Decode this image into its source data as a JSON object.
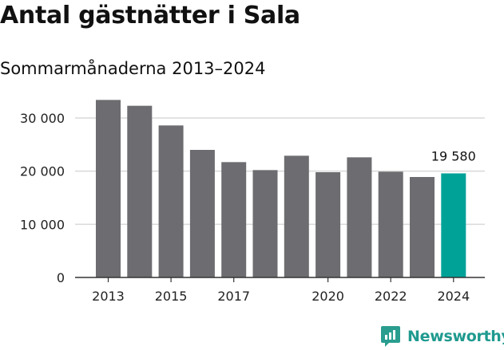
{
  "header": {
    "title": "Antal gästnätter i Sala",
    "subtitle": "Sommarmånaderna 2013–2024"
  },
  "brand": {
    "name": "Newsworthy",
    "color": "#2a9d8f"
  },
  "chart_data": {
    "type": "bar",
    "title": "Antal gästnätter i Sala",
    "subtitle": "Sommarmånaderna 2013–2024",
    "categories": [
      "2013",
      "2014",
      "2015",
      "2016",
      "2017",
      "2018",
      "2019",
      "2020",
      "2021",
      "2022",
      "2023",
      "2024"
    ],
    "values": [
      33400,
      32300,
      28600,
      24000,
      21700,
      20200,
      22900,
      19800,
      22600,
      19900,
      18900,
      19580
    ],
    "x_tick_labels": [
      "2013",
      "2015",
      "2017",
      "2020",
      "2022",
      "2024"
    ],
    "y_ticks": [
      0,
      10000,
      20000,
      30000
    ],
    "y_tick_labels": [
      "0",
      "10 000",
      "20 000",
      "30 000"
    ],
    "ylim": [
      0,
      36000
    ],
    "annotations": [
      {
        "category": "2024",
        "text": "19 580"
      }
    ],
    "grid": true,
    "colors": {
      "bar": "#6d6c70",
      "highlight": "#00a298",
      "grid": "#d9d9d9"
    },
    "highlight_category": "2024",
    "xlabel": "",
    "ylabel": ""
  }
}
